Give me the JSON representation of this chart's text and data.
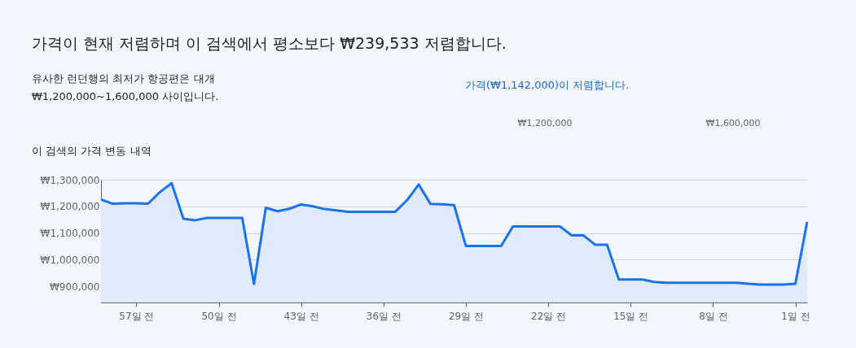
{
  "chart_data": {
    "type": "area",
    "title": "가격이 현재 저렴하며 이 검색에서 평소보다 ₩239,533 저렴합니다.",
    "subtitle": "유사한 런던행의 최저가 항공편은 대개 ₩1,200,000~1,600,000 사이입니다.",
    "annotations": [
      "가격(₩1,142,000)이 저렴합니다.",
      "₩1,200,000",
      "₩1,600,000",
      "이 검색의 가격 변동 내역"
    ],
    "x": [
      -60,
      -59,
      -58,
      -57,
      -56,
      -55,
      -54,
      -53,
      -52,
      -51,
      -50,
      -49,
      -48,
      -47,
      -46,
      -45,
      -44,
      -43,
      -42,
      -41,
      -40,
      -39,
      -38,
      -37,
      -36,
      -35,
      -34,
      -33,
      -32,
      -31,
      -30,
      -29,
      -28,
      -27,
      -26,
      -25,
      -24,
      -23,
      -22,
      -21,
      -20,
      -19,
      -18,
      -17,
      -16,
      -15,
      -14,
      -13,
      -12,
      -11,
      -10,
      -9,
      -8,
      -7,
      -6,
      -5,
      -4,
      -3,
      -2,
      -1,
      0
    ],
    "series": [
      {
        "color": "#1a73e8",
        "values": [
          1226000,
          1210000,
          1212000,
          1212000,
          1210000,
          1253000,
          1287000,
          1154000,
          1148000,
          1157000,
          1157000,
          1157000,
          1157000,
          909000,
          1195000,
          1182000,
          1191000,
          1207000,
          1200000,
          1190000,
          1185000,
          1180000,
          1180000,
          1180000,
          1180000,
          1180000,
          1223000,
          1282000,
          1209000,
          1208000,
          1205000,
          1052000,
          1052000,
          1052000,
          1052000,
          1125000,
          1125000,
          1125000,
          1125000,
          1125000,
          1091000,
          1091000,
          1056000,
          1056000,
          926000,
          926000,
          926000,
          917000,
          914000,
          914000,
          914000,
          914000,
          914000,
          914000,
          914000,
          910000,
          907000,
          907000,
          907000,
          910000,
          1142000
        ]
      }
    ],
    "xlim": [
      -60,
      0
    ],
    "xticks": [
      {
        "value": -57,
        "label": "57일 전"
      },
      {
        "value": -50,
        "label": "50일 전"
      },
      {
        "value": -43,
        "label": "43일 전"
      },
      {
        "value": -36,
        "label": "36일 전"
      },
      {
        "value": -29,
        "label": "29일 전"
      },
      {
        "value": -22,
        "label": "22일 전"
      },
      {
        "value": -15,
        "label": "15일 전"
      },
      {
        "value": -8,
        "label": "8일 전"
      },
      {
        "value": -1,
        "label": "1일 전"
      }
    ],
    "ylim": [
      840000,
      1300000
    ],
    "yticks": [
      {
        "value": 900000,
        "label": "₩900,000"
      },
      {
        "value": 1000000,
        "label": "₩1,000,000"
      },
      {
        "value": 1100000,
        "label": "₩1,100,000"
      },
      {
        "value": 1200000,
        "label": "₩1,200,000"
      },
      {
        "value": 1300000,
        "label": "₩1,300,000"
      }
    ],
    "grid": "y"
  }
}
